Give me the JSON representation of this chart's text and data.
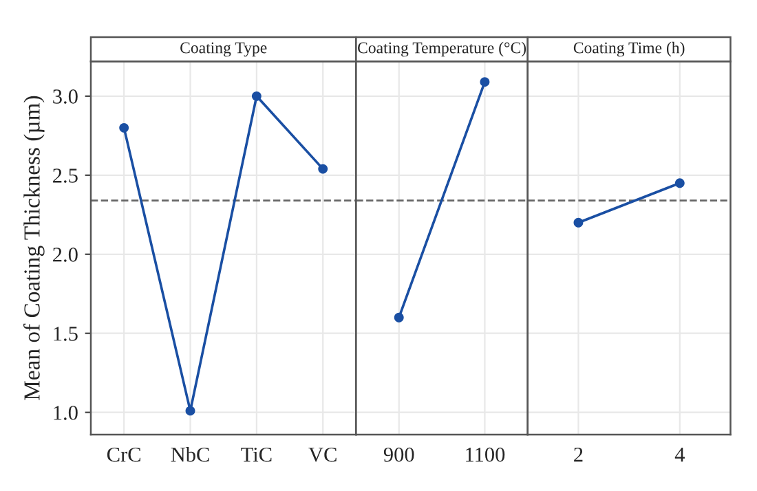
{
  "chart_data": [
    {
      "type": "line",
      "title": "Coating Type",
      "ylabel": "Mean of Coating Thickness (µm)",
      "categories": [
        "CrC",
        "NbC",
        "TiC",
        "VC"
      ],
      "series": [
        {
          "color": "#1a4fa3",
          "values": [
            2.8,
            1.01,
            3.0,
            2.54
          ]
        }
      ],
      "ylim": [
        0.86,
        3.22
      ],
      "yticks": [
        {
          "value": 1.0,
          "label": "1.0"
        },
        {
          "value": 1.5,
          "label": "1.5"
        },
        {
          "value": 2.0,
          "label": "2.0"
        },
        {
          "value": 2.5,
          "label": "2.5"
        },
        {
          "value": 3.0,
          "label": "3.0"
        }
      ],
      "grid": true,
      "marker": "circle",
      "line_style": "solid",
      "ref_lines": [
        {
          "axis": "y",
          "value": 2.34,
          "color": "#666666",
          "line_style": "dashed"
        }
      ]
    },
    {
      "type": "line",
      "title": "Coating Temperature (°C)",
      "categories": [
        "900",
        "1100"
      ],
      "series": [
        {
          "color": "#1a4fa3",
          "values": [
            1.6,
            3.09
          ]
        }
      ],
      "ylim": [
        0.86,
        3.22
      ],
      "yticks": [
        {
          "value": 1.0,
          "label": null
        },
        {
          "value": 1.5,
          "label": null
        },
        {
          "value": 2.0,
          "label": null
        },
        {
          "value": 2.5,
          "label": null
        },
        {
          "value": 3.0,
          "label": null
        }
      ],
      "tick_labels": "x",
      "grid": true,
      "marker": "circle",
      "line_style": "solid",
      "ref_lines": [
        {
          "axis": "y",
          "value": 2.34,
          "color": "#666666",
          "line_style": "dashed"
        }
      ]
    },
    {
      "type": "line",
      "title": "Coating Time (h)",
      "categories": [
        "2",
        "4"
      ],
      "series": [
        {
          "color": "#1a4fa3",
          "values": [
            2.2,
            2.45
          ]
        }
      ],
      "ylim": [
        0.86,
        3.22
      ],
      "yticks": [
        {
          "value": 1.0,
          "label": null
        },
        {
          "value": 1.5,
          "label": null
        },
        {
          "value": 2.0,
          "label": null
        },
        {
          "value": 2.5,
          "label": null
        },
        {
          "value": 3.0,
          "label": null
        }
      ],
      "tick_labels": "x",
      "grid": true,
      "marker": "circle",
      "line_style": "solid",
      "ref_lines": [
        {
          "axis": "y",
          "value": 2.34,
          "color": "#666666",
          "line_style": "dashed"
        }
      ]
    }
  ]
}
